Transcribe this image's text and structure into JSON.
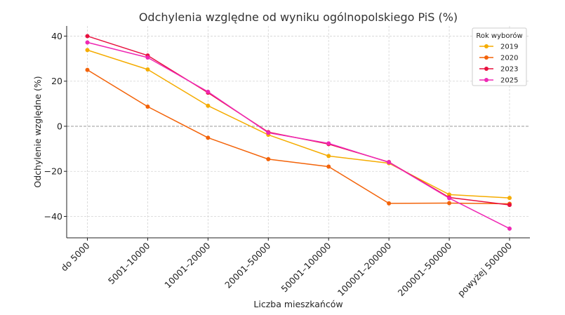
{
  "chart_data": {
    "type": "line",
    "title": "Odchylenia względne od wyniku ogólnopolskiego PiS (%)",
    "xlabel": "Liczba mieszkańców",
    "ylabel": "Odchylenie względne (%)",
    "categories": [
      "do 5000",
      "5001–10000",
      "10001–20000",
      "20001–50000",
      "50001–100000",
      "100001–200000",
      "200001–500000",
      "powyżej 500000"
    ],
    "ylim": [
      -49.5,
      44.5
    ],
    "yticks": [
      40,
      20,
      0,
      -20,
      -40
    ],
    "ytick_labels": [
      "40",
      "20",
      "0",
      "−20",
      "−40"
    ],
    "grid": true,
    "zero_line": true,
    "legend_title": "Rok wyborów",
    "legend_position": "top-right",
    "series": [
      {
        "name": "2019",
        "color": "#f5ac00",
        "values": [
          33.8,
          25.2,
          9.1,
          -3.8,
          -13.2,
          -16.4,
          -30.3,
          -31.8
        ]
      },
      {
        "name": "2020",
        "color": "#f36309",
        "values": [
          25.0,
          8.7,
          -5.1,
          -14.6,
          -17.9,
          -34.2,
          -34.1,
          -34.4
        ]
      },
      {
        "name": "2023",
        "color": "#e8103f",
        "values": [
          40.0,
          31.4,
          14.9,
          -2.6,
          -7.9,
          -15.9,
          -31.6,
          -34.9
        ]
      },
      {
        "name": "2025",
        "color": "#ef28b4",
        "values": [
          37.2,
          30.5,
          15.3,
          -2.9,
          -7.6,
          -16.0,
          -31.9,
          -45.4
        ]
      }
    ]
  }
}
